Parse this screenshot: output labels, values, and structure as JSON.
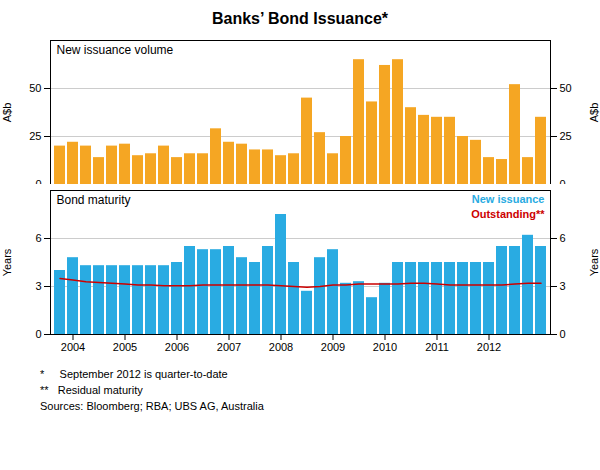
{
  "chart_data": [
    {
      "type": "bar",
      "title": "Banks’ Bond Issuance*",
      "subtitle": "New issuance volume",
      "categories": [
        null,
        "2004",
        null,
        null,
        null,
        "2005",
        null,
        null,
        null,
        "2006",
        null,
        null,
        null,
        "2007",
        null,
        null,
        null,
        "2008",
        null,
        null,
        null,
        "2009",
        null,
        null,
        null,
        "2010",
        null,
        null,
        null,
        "2011",
        null,
        null,
        null,
        "2012",
        null,
        null,
        null,
        null
      ],
      "values": [
        20,
        22,
        20,
        14,
        20,
        21,
        15,
        16,
        20,
        14,
        16,
        16,
        29,
        22,
        21,
        18,
        18,
        15,
        16,
        45,
        27,
        16,
        25,
        65,
        43,
        62,
        65,
        40,
        36,
        35,
        35,
        25,
        23,
        14,
        13,
        52,
        14,
        35
      ],
      "color": "#F5A623",
      "ylabel": "A$b",
      "y2label": "A$b",
      "ylim": [
        0,
        75
      ],
      "yticks": [
        0,
        25,
        50
      ],
      "y2lim": [
        0,
        75
      ],
      "y2ticks": [
        0,
        25,
        50
      ],
      "grid": true,
      "tick_labels": "y"
    },
    {
      "type": "bar",
      "subtitle": "Bond maturity",
      "categories": [
        null,
        "2004",
        null,
        null,
        null,
        "2005",
        null,
        null,
        null,
        "2006",
        null,
        null,
        null,
        "2007",
        null,
        null,
        null,
        "2008",
        null,
        null,
        null,
        "2009",
        null,
        null,
        null,
        "2010",
        null,
        null,
        null,
        "2011",
        null,
        null,
        null,
        "2012",
        null,
        null,
        null,
        null
      ],
      "series": [
        {
          "name": "New issuance",
          "type": "bar",
          "color": "#29ABE2",
          "values": [
            4.0,
            4.8,
            4.3,
            4.3,
            4.3,
            4.3,
            4.3,
            4.3,
            4.3,
            4.5,
            5.5,
            5.3,
            5.3,
            5.5,
            4.8,
            4.5,
            5.5,
            7.5,
            4.5,
            2.7,
            4.8,
            5.3,
            3.2,
            3.3,
            2.3,
            3.2,
            4.5,
            4.5,
            4.5,
            4.5,
            4.5,
            4.5,
            4.5,
            4.5,
            5.5,
            5.5,
            6.2,
            5.5
          ]
        },
        {
          "name": "Outstanding**",
          "type": "line",
          "color": "#CC0000",
          "values": [
            3.5,
            3.4,
            3.3,
            3.25,
            3.2,
            3.15,
            3.1,
            3.1,
            3.05,
            3.05,
            3.05,
            3.1,
            3.1,
            3.1,
            3.1,
            3.1,
            3.1,
            3.05,
            3.0,
            2.95,
            3.0,
            3.1,
            3.1,
            3.15,
            3.15,
            3.15,
            3.15,
            3.2,
            3.2,
            3.15,
            3.1,
            3.1,
            3.1,
            3.1,
            3.1,
            3.15,
            3.2,
            3.2
          ]
        }
      ],
      "ylabel": "Years",
      "y2label": "Years",
      "ylim": [
        0,
        9
      ],
      "yticks": [
        0,
        3,
        6
      ],
      "y2lim": [
        0,
        9
      ],
      "y2ticks": [
        0,
        3,
        6
      ],
      "grid": true,
      "annotations": [
        "*     September 2012 is quarter-to-date",
        "**   Residual maturity",
        "Sources: Bloomberg; RBA; UBS AG, Australia"
      ]
    }
  ]
}
